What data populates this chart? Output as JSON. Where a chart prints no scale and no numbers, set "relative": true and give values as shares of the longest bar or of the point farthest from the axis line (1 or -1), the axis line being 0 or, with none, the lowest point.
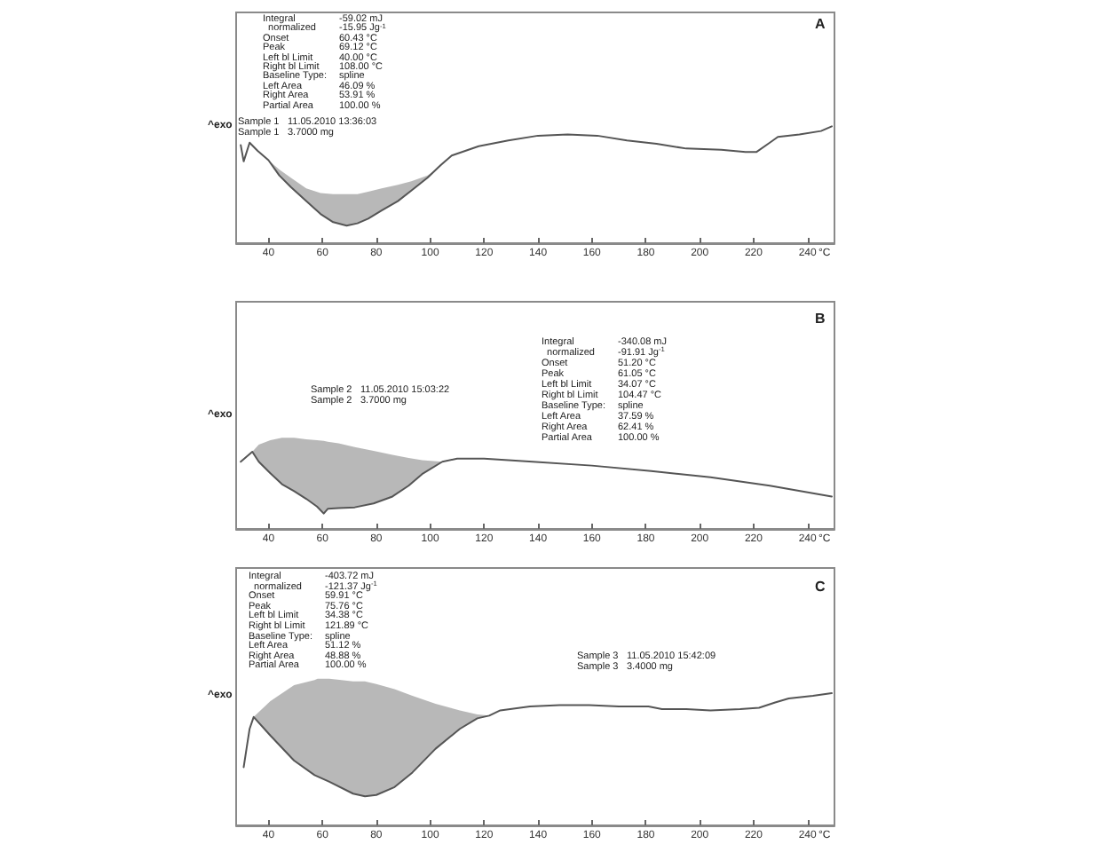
{
  "chart_data": [
    {
      "type": "line",
      "relative": true,
      "title": "A",
      "xlabel": "°C",
      "ylabel": "^exo",
      "xlim": [
        28,
        250
      ],
      "xticks": [
        40,
        60,
        80,
        100,
        120,
        140,
        160,
        180,
        200,
        220,
        240
      ],
      "tick_labels": "x",
      "annotations": [
        "Integral\t-59.02 mJ\n  normalized\t-15.95 Jg$^{-1}$\nOnset\t60.43 °C\nPeak\t69.12 °C\nLeft bl Limit\t40.00 °C\nRight bl Limit\t108.00 °C\nBaseline Type:\tspline\nLeft Area\t46.09 %\nRight Area\t53.91 %\nPartial Area\t100.00 %",
        "Sample 1\t11.05.2010 13:36:03\nSample 1\t3.7000 mg"
      ],
      "series": [
        {
          "color": "#555555",
          "x": [
            29.7,
            30.8,
            33,
            36,
            40,
            44,
            48.3,
            54,
            59.3,
            64,
            69,
            73,
            77,
            82,
            88,
            93,
            99,
            104,
            108,
            118,
            129,
            140,
            151,
            162,
            173,
            184,
            195,
            208,
            217,
            221,
            226,
            229,
            237,
            245,
            249
          ],
          "values": [
            0.84,
            0.7,
            0.86,
            0.79,
            0.71,
            0.58,
            0.48,
            0.36,
            0.25,
            0.18,
            0.15,
            0.17,
            0.21,
            0.28,
            0.36,
            0.45,
            0.56,
            0.67,
            0.75,
            0.83,
            0.88,
            0.92,
            0.93,
            0.92,
            0.88,
            0.85,
            0.81,
            0.8,
            0.78,
            0.78,
            0.86,
            0.91,
            0.93,
            0.96,
            1
          ],
          "lower": [
            null,
            null,
            null,
            null,
            0.71,
            0.58,
            0.48,
            0.36,
            0.25,
            0.18,
            0.15,
            0.17,
            0.21,
            0.28,
            0.36,
            0.45,
            0.56,
            0.67,
            0.75,
            null,
            null,
            null,
            null,
            null,
            null,
            null,
            null,
            null,
            null,
            null,
            null,
            null,
            null,
            null,
            null
          ],
          "upper": [
            null,
            null,
            null,
            null,
            0.71,
            0.63,
            0.56,
            0.47,
            0.43,
            0.42,
            0.42,
            0.42,
            0.44,
            0.47,
            0.5,
            0.53,
            0.58,
            0.66,
            0.75,
            null,
            null,
            null,
            null,
            null,
            null,
            null,
            null,
            null,
            null,
            null,
            null,
            null,
            null,
            null,
            null
          ]
        }
      ]
    },
    {
      "type": "line",
      "relative": true,
      "title": "B",
      "xlabel": "°C",
      "ylabel": "^exo",
      "xlim": [
        28,
        250
      ],
      "xticks": [
        40,
        60,
        80,
        100,
        120,
        140,
        160,
        180,
        200,
        220,
        240
      ],
      "tick_labels": "x",
      "annotations": [
        "Integral\t-340.08 mJ\n  normalized\t-91.91 Jg$^{-1}$\nOnset\t51.20 °C\nPeak\t61.05 °C\nLeft bl Limit\t34.07 °C\nRight bl Limit\t104.47 °C\nBaseline Type:\tspline\nLeft Area\t37.59 %\nRight Area\t62.41 %\nPartial Area\t100.00 %",
        "Sample 2\t11.05.2010 15:03:22\nSample 2\t3.7000 mg"
      ],
      "series": [
        {
          "color": "#555555",
          "x": [
            29.7,
            34,
            36.4,
            40.7,
            45,
            49.5,
            54,
            58,
            60.5,
            62,
            66,
            72,
            79,
            86,
            92,
            97,
            104.5,
            110,
            120,
            138,
            160,
            182,
            204,
            226,
            249
          ],
          "values": [
            0.87,
            1,
            0.87,
            0.72,
            0.58,
            0.49,
            0.39,
            0.29,
            0.2,
            0.26,
            0.27,
            0.28,
            0.33,
            0.42,
            0.56,
            0.71,
            0.87,
            0.91,
            0.91,
            0.87,
            0.82,
            0.75,
            0.67,
            0.56,
            0.42
          ],
          "lower": [
            null,
            1,
            0.87,
            0.72,
            0.58,
            0.49,
            0.39,
            0.29,
            0.2,
            0.26,
            0.27,
            0.28,
            0.33,
            0.42,
            0.56,
            0.71,
            0.87,
            null,
            null,
            null,
            null,
            null,
            null,
            null,
            null
          ],
          "upper": [
            null,
            1,
            1.09,
            1.15,
            1.18,
            1.18,
            1.16,
            1.15,
            1.14,
            1.13,
            1.11,
            1.06,
            1.01,
            0.96,
            0.92,
            0.89,
            0.87,
            null,
            null,
            null,
            null,
            null,
            null,
            null,
            null
          ]
        }
      ]
    },
    {
      "type": "line",
      "relative": true,
      "title": "C",
      "xlabel": "°C",
      "ylabel": "^exo",
      "xlim": [
        28,
        250
      ],
      "xticks": [
        40,
        60,
        80,
        100,
        120,
        140,
        160,
        180,
        200,
        220,
        240
      ],
      "tick_labels": "x",
      "annotations": [
        "Integral\t-403.72 mJ\n  normalized\t-121.37 Jg$^{-1}$\nOnset\t59.91 °C\nPeak\t75.76 °C\nLeft bl Limit\t34.38 °C\nRight bl Limit\t121.89 °C\nBaseline Type:\tspline\nLeft Area\t51.12 %\nRight Area\t48.88 %\nPartial Area\t100.00 %",
        "Sample 3\t11.05.2010 15:42:09\nSample 3\t3.4000 mg"
      ],
      "series": [
        {
          "color": "#555555",
          "x": [
            30.8,
            32,
            33,
            34.5,
            40.7,
            49.5,
            57.1,
            58.2,
            62.6,
            71.4,
            75.8,
            80,
            86.8,
            93.4,
            102,
            111,
            117.5,
            121.9,
            126,
            137,
            148,
            159,
            170,
            181,
            186,
            195,
            204,
            215,
            222,
            228,
            233,
            242,
            249
          ],
          "values": [
            0.44,
            0.6,
            0.73,
            0.82,
            0.68,
            0.49,
            0.38,
            0.37,
            0.33,
            0.24,
            0.22,
            0.23,
            0.29,
            0.4,
            0.58,
            0.73,
            0.81,
            0.83,
            0.87,
            0.9,
            0.91,
            0.91,
            0.9,
            0.9,
            0.88,
            0.88,
            0.87,
            0.88,
            0.89,
            0.93,
            0.96,
            0.98,
            1
          ],
          "lower": [
            null,
            null,
            null,
            0.82,
            0.68,
            0.49,
            0.38,
            0.37,
            0.33,
            0.24,
            0.22,
            0.23,
            0.29,
            0.4,
            0.58,
            0.73,
            0.81,
            0.83,
            null,
            null,
            null,
            null,
            null,
            null,
            null,
            null,
            null,
            null,
            null,
            null,
            null,
            null,
            null
          ],
          "upper": [
            null,
            null,
            null,
            0.82,
            0.94,
            1.06,
            1.1,
            1.11,
            1.11,
            1.09,
            1.09,
            1.07,
            1.03,
            0.98,
            0.92,
            0.87,
            0.84,
            0.83,
            null,
            null,
            null,
            null,
            null,
            null,
            null,
            null,
            null,
            null,
            null,
            null,
            null,
            null,
            null
          ]
        }
      ]
    }
  ]
}
